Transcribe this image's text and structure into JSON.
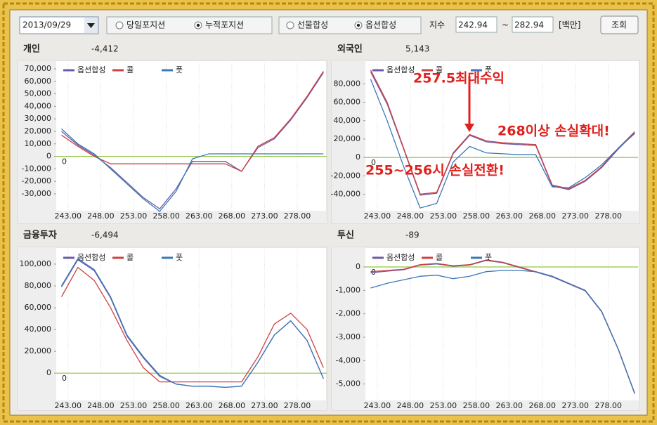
{
  "toolbar": {
    "date": "2013/09/29",
    "position_radios": [
      {
        "label": "당일포지션",
        "checked": false
      },
      {
        "label": "누적포지션",
        "checked": true
      }
    ],
    "synth_radios": [
      {
        "label": "선물합성",
        "checked": false
      },
      {
        "label": "옵션합성",
        "checked": true
      }
    ],
    "index_label": "지수",
    "index_from": "242.94",
    "range_sep": "~",
    "index_to": "282.94",
    "unit": "[백만]",
    "query_button": "조회"
  },
  "chart_data": [
    {
      "type": "line",
      "title": "개인",
      "subtitle": "-4,412",
      "x": [
        242,
        244.5,
        247,
        249.5,
        252,
        254.5,
        257,
        259.5,
        262,
        264.5,
        267,
        269.5,
        272,
        274.5,
        277,
        279.5,
        282
      ],
      "xlim": [
        241.2,
        282.5
      ],
      "xticks": [
        {
          "value": 243,
          "label": "243.00"
        },
        {
          "value": 248,
          "label": "248.00"
        },
        {
          "value": 253,
          "label": "253.00"
        },
        {
          "value": 258,
          "label": "258.00"
        },
        {
          "value": 263,
          "label": "263.00"
        },
        {
          "value": 268,
          "label": "268.00"
        },
        {
          "value": 273,
          "label": "273.00"
        },
        {
          "value": 278,
          "label": "278.00"
        }
      ],
      "ylim": [
        -43500,
        75600
      ],
      "yticks": [
        {
          "value": -30000,
          "label": "-30,000"
        },
        {
          "value": -20000,
          "label": "-20,000"
        },
        {
          "value": -10000,
          "label": "-10,000"
        },
        0,
        {
          "value": 10000,
          "label": "10,000"
        },
        {
          "value": 20000,
          "label": "20,000"
        },
        {
          "value": 30000,
          "label": "30,000"
        },
        {
          "value": 40000,
          "label": "40,000"
        },
        {
          "value": 50000,
          "label": "50,000"
        },
        {
          "value": 60000,
          "label": "60,000"
        },
        {
          "value": 70000,
          "label": "70,000"
        }
      ],
      "reference_line": {
        "value": 0,
        "label": "0",
        "color": "#8cc63f"
      },
      "series": [
        {
          "name": "옵션합성",
          "color": "#6a5aa8",
          "values": [
            20000,
            9000,
            1000,
            -9000,
            -21000,
            -33000,
            -42000,
            -26000,
            -4000,
            -4000,
            -4000,
            -12000,
            7000,
            14000,
            29000,
            47000,
            67000
          ]
        },
        {
          "name": "콜",
          "color": "#d04040",
          "values": [
            17000,
            8000,
            0,
            -6000,
            -6000,
            -6000,
            -6000,
            -6000,
            -6000,
            -6000,
            -6000,
            -12000,
            8000,
            15000,
            30000,
            48000,
            68000
          ]
        },
        {
          "name": "풋",
          "color": "#3a78b8",
          "values": [
            22000,
            10000,
            2000,
            -10000,
            -22000,
            -34000,
            -44000,
            -28000,
            -2000,
            2000,
            2000,
            2000,
            2000,
            2000,
            2000,
            2000,
            2000
          ]
        }
      ]
    },
    {
      "type": "line",
      "title": "외국인",
      "subtitle": "5,143",
      "x": [
        242,
        244.5,
        247,
        249.5,
        252,
        254.5,
        257,
        259.5,
        262,
        264.5,
        267,
        269.5,
        272,
        274.5,
        277,
        279.5,
        282
      ],
      "xlim": [
        241.2,
        282.5
      ],
      "xticks": [
        {
          "value": 243,
          "label": "243.00"
        },
        {
          "value": 248,
          "label": "248.00"
        },
        {
          "value": 253,
          "label": "253.00"
        },
        {
          "value": 258,
          "label": "258.00"
        },
        {
          "value": 263,
          "label": "263.00"
        },
        {
          "value": 268,
          "label": "268.00"
        },
        {
          "value": 273,
          "label": "273.00"
        },
        {
          "value": 278,
          "label": "278.00"
        }
      ],
      "ylim": [
        -58000,
        104000
      ],
      "yticks": [
        {
          "value": -40000,
          "label": "-40,000"
        },
        {
          "value": -20000,
          "label": "-20,000"
        },
        0,
        {
          "value": 20000,
          "label": "20,000"
        },
        {
          "value": 40000,
          "label": "40,000"
        },
        {
          "value": 60000,
          "label": "60,000"
        },
        {
          "value": 80000,
          "label": "80,000"
        }
      ],
      "reference_line": {
        "value": 0,
        "label": "0",
        "color": "#8cc63f"
      },
      "annotations": [
        "257.5최대수익",
        "268이상 손실확대!",
        "255~256시 손실전환!"
      ],
      "series": [
        {
          "name": "옵션합성",
          "color": "#6a5aa8",
          "values": [
            93000,
            58000,
            9000,
            -41000,
            -39000,
            4000,
            24000,
            17000,
            15000,
            14000,
            13000,
            -31000,
            -35000,
            -26000,
            -11000,
            9000,
            27000
          ]
        },
        {
          "name": "콜",
          "color": "#d04040",
          "values": [
            95000,
            60000,
            10000,
            -40000,
            -38000,
            5000,
            25000,
            18000,
            16000,
            15000,
            14000,
            -30000,
            -34000,
            -25000,
            -10000,
            10000,
            28000
          ]
        },
        {
          "name": "풋",
          "color": "#3a78b8",
          "values": [
            85000,
            40000,
            -10000,
            -55000,
            -50000,
            -5000,
            12000,
            5000,
            4000,
            3000,
            3000,
            -32000,
            -33000,
            -22000,
            -8000,
            10000,
            26000
          ]
        }
      ]
    },
    {
      "type": "line",
      "title": "금융투자",
      "subtitle": "-6,494",
      "x": [
        242,
        244.5,
        247,
        249.5,
        252,
        254.5,
        257,
        259.5,
        262,
        264.5,
        267,
        269.5,
        272,
        274.5,
        277,
        279.5,
        282
      ],
      "xlim": [
        241.2,
        282.5
      ],
      "xticks": [
        {
          "value": 243,
          "label": "243.00"
        },
        {
          "value": 248,
          "label": "248.00"
        },
        {
          "value": 253,
          "label": "253.00"
        },
        {
          "value": 258,
          "label": "258.00"
        },
        {
          "value": 263,
          "label": "263.00"
        },
        {
          "value": 268,
          "label": "268.00"
        },
        {
          "value": 273,
          "label": "273.00"
        },
        {
          "value": 278,
          "label": "278.00"
        }
      ],
      "ylim": [
        -25000,
        113500
      ],
      "yticks": [
        0,
        {
          "value": 20000,
          "label": "20,000"
        },
        {
          "value": 40000,
          "label": "40,000"
        },
        {
          "value": 60000,
          "label": "60,000"
        },
        {
          "value": 80000,
          "label": "80,000"
        },
        {
          "value": 100000,
          "label": "100,000"
        }
      ],
      "reference_line": {
        "value": 0,
        "label": "0",
        "color": "#8cc63f"
      },
      "series": [
        {
          "name": "옵션합성",
          "color": "#6a5aa8",
          "values": [
            79000,
            104000,
            94000,
            69000,
            34000,
            14000,
            -3000,
            -10000,
            -12000,
            -12000,
            -13000,
            -12000,
            10000,
            35000,
            48000,
            30000,
            -5000
          ]
        },
        {
          "name": "콜",
          "color": "#d04040",
          "values": [
            70000,
            97000,
            85000,
            60000,
            30000,
            5000,
            -8000,
            -8000,
            -8000,
            -8000,
            -8000,
            -8000,
            15000,
            45000,
            55000,
            40000,
            5000
          ]
        },
        {
          "name": "풋",
          "color": "#3a78b8",
          "values": [
            80000,
            105000,
            95000,
            70000,
            35000,
            15000,
            -2000,
            -10000,
            -12000,
            -12000,
            -13000,
            -12000,
            10000,
            35000,
            48000,
            30000,
            -5000
          ]
        }
      ]
    },
    {
      "type": "line",
      "title": "투신",
      "subtitle": "-89",
      "x": [
        242,
        244.5,
        247,
        249.5,
        252,
        254.5,
        257,
        259.5,
        262,
        264.5,
        267,
        269.5,
        272,
        274.5,
        277,
        279.5,
        282
      ],
      "xlim": [
        241.2,
        282.5
      ],
      "xticks": [
        {
          "value": 243,
          "label": "243.00"
        },
        {
          "value": 248,
          "label": "248.00"
        },
        {
          "value": 253,
          "label": "253.00"
        },
        {
          "value": 258,
          "label": "258.00"
        },
        {
          "value": 263,
          "label": "263.00"
        },
        {
          "value": 268,
          "label": "268.00"
        },
        {
          "value": 273,
          "label": "273.00"
        },
        {
          "value": 278,
          "label": "278.00"
        }
      ],
      "ylim": [
        -5700,
        750
      ],
      "yticks": [
        {
          "value": -5000,
          "label": "-5,000"
        },
        {
          "value": -4000,
          "label": "-4,000"
        },
        {
          "value": -3000,
          "label": "-3,000"
        },
        {
          "value": -2000,
          "label": "-2,000"
        },
        {
          "value": -1000,
          "label": "-1,000"
        },
        0
      ],
      "reference_line": {
        "value": 0,
        "label": "0",
        "color": "#8cc63f"
      },
      "series": [
        {
          "name": "옵션합성",
          "color": "#6a5aa8",
          "values": [
            -250,
            -180,
            -120,
            80,
            130,
            30,
            80,
            280,
            180,
            -20,
            -220,
            -420,
            -720,
            -1020,
            -1920,
            -3520,
            -5420
          ]
        },
        {
          "name": "콜",
          "color": "#d04040",
          "values": [
            -200,
            -150,
            -100,
            100,
            150,
            50,
            100,
            300,
            200,
            0,
            -200,
            -400,
            -700,
            -1000,
            -1900,
            -3500,
            -5400
          ]
        },
        {
          "name": "풋",
          "color": "#3a78b8",
          "values": [
            -900,
            -700,
            -550,
            -400,
            -350,
            -500,
            -400,
            -200,
            -150,
            -150,
            -200,
            -400,
            -700,
            -1000,
            -1900,
            -3500,
            -5400
          ]
        }
      ]
    }
  ]
}
